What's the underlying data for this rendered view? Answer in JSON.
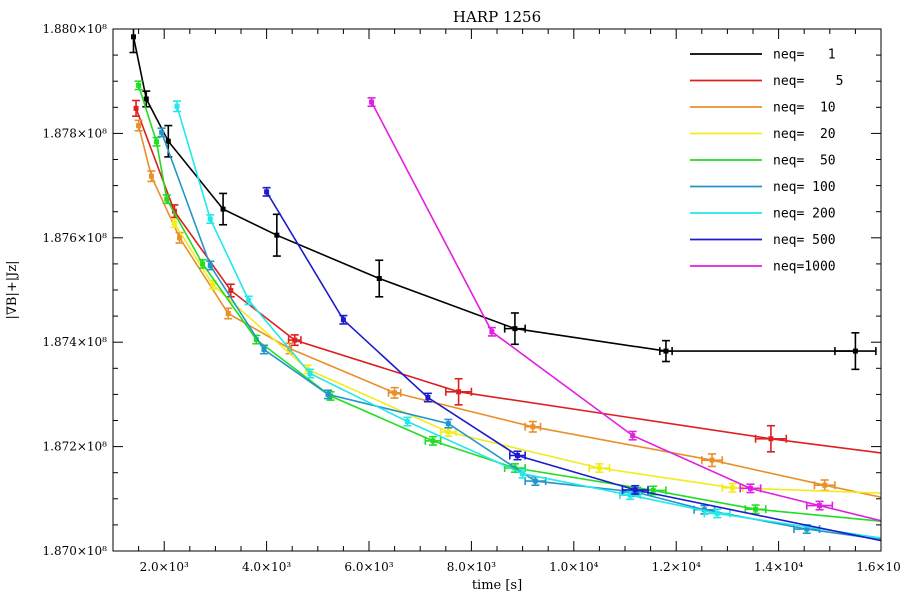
{
  "chart_data": {
    "type": "line",
    "title": "HARP 1256",
    "xlabel": "time [s]",
    "ylabel": "|∇B|+|Jz|",
    "xlim": [
      1000,
      16000
    ],
    "ylim": [
      187000000.0,
      188000000.0
    ],
    "x_ticks": [
      {
        "value": 2000,
        "label": "2.0×10³"
      },
      {
        "value": 4000,
        "label": "4.0×10³"
      },
      {
        "value": 6000,
        "label": "6.0×10³"
      },
      {
        "value": 8000,
        "label": "8.0×10³"
      },
      {
        "value": 10000,
        "label": "1.0×10⁴"
      },
      {
        "value": 12000,
        "label": "1.2×10⁴"
      },
      {
        "value": 14000,
        "label": "1.4×10⁴"
      },
      {
        "value": 16000,
        "label": "1.6×10⁴"
      }
    ],
    "y_ticks": [
      {
        "value": 187000000.0,
        "label": "1.870×10⁸"
      },
      {
        "value": 187200000.0,
        "label": "1.872×10⁸"
      },
      {
        "value": 187400000.0,
        "label": "1.874×10⁸"
      },
      {
        "value": 187600000.0,
        "label": "1.876×10⁸"
      },
      {
        "value": 187800000.0,
        "label": "1.878×10⁸"
      },
      {
        "value": 188000000.0,
        "label": "1.880×10⁸"
      }
    ],
    "legend_position": "top-right",
    "series": [
      {
        "name": "neq=   1",
        "color": "#000000",
        "x": [
          1400,
          1650,
          2080,
          3150,
          4200,
          6200,
          8850,
          11800,
          15500
        ],
        "y": [
          187985000.0,
          187866000.0,
          187785000.0,
          187655000.0,
          187605000.0,
          187522000.0,
          187426000.0,
          187383000.0,
          187383000.0
        ],
        "yerr": [
          30000.0,
          15000.0,
          30000.0,
          30000.0,
          40000.0,
          35000.0,
          30000.0,
          20000.0,
          35000.0
        ],
        "xerr": [
          0,
          0,
          0,
          0,
          0,
          0,
          200,
          120,
          400
        ]
      },
      {
        "name": "neq=    5",
        "color": "#dd2020",
        "x": [
          1450,
          2200,
          3300,
          4550,
          7750,
          13850,
          16000
        ],
        "y": [
          187848000.0,
          187651000.0,
          187499000.0,
          187404000.0,
          187305000.0,
          187215000.0,
          187188000.0
        ],
        "yerr": [
          15000.0,
          12000.0,
          12000.0,
          10000.0,
          25000.0,
          25000.0,
          0
        ],
        "xerr": [
          0,
          0,
          0,
          120,
          250,
          300,
          0
        ]
      },
      {
        "name": "neq=  10",
        "color": "#e8902a",
        "x": [
          1500,
          1750,
          2300,
          3250,
          4450,
          6500,
          9200,
          12700,
          14900,
          16000
        ],
        "y": [
          187815000.0,
          187718000.0,
          187600000.0,
          187455000.0,
          187388000.0,
          187303000.0,
          187238000.0,
          187174000.0,
          187126000.0,
          187103000.0
        ],
        "yerr": [
          10000.0,
          10000.0,
          10000.0,
          10000.0,
          10000.0,
          10000.0,
          10000.0,
          12000.0,
          10000.0,
          0
        ],
        "xerr": [
          0,
          0,
          0,
          0,
          0,
          120,
          150,
          200,
          200,
          0
        ]
      },
      {
        "name": "neq=  20",
        "color": "#f2ec1c",
        "x": [
          2200,
          2950,
          4800,
          7550,
          10500,
          13100,
          16000
        ],
        "y": [
          187628000.0,
          187510000.0,
          187348000.0,
          187228000.0,
          187159000.0,
          187121000.0,
          187111000.0
        ],
        "yerr": [
          8000.0,
          8000.0,
          8000.0,
          8000.0,
          8000.0,
          8000.0,
          0
        ],
        "xerr": [
          0,
          0,
          0,
          150,
          200,
          200,
          0
        ]
      },
      {
        "name": "neq=  50",
        "color": "#22dd22",
        "x": [
          1500,
          1850,
          2050,
          2750,
          3800,
          5250,
          7250,
          8850,
          11550,
          13550,
          16000
        ],
        "y": [
          187892000.0,
          187784000.0,
          187674000.0,
          187550000.0,
          187405000.0,
          187297000.0,
          187211000.0,
          187159000.0,
          187116000.0,
          187080000.0,
          187057000.0
        ],
        "yerr": [
          8000.0,
          8000.0,
          8000.0,
          8000.0,
          8000.0,
          8000.0,
          8000.0,
          8000.0,
          8000.0,
          8000.0,
          0
        ],
        "xerr": [
          0,
          0,
          0,
          0,
          0,
          0,
          150,
          200,
          250,
          200,
          0
        ]
      },
      {
        "name": "neq= 100",
        "color": "#2296c8",
        "x": [
          1950,
          2900,
          3950,
          5200,
          7550,
          9250,
          11200,
          12550,
          14550,
          16000
        ],
        "y": [
          187802000.0,
          187547000.0,
          187386000.0,
          187300000.0,
          187244000.0,
          187134000.0,
          187113000.0,
          187079000.0,
          187042000.0,
          187022000.0
        ],
        "yerr": [
          8000.0,
          8000.0,
          8000.0,
          8000.0,
          8000.0,
          8000.0,
          8000.0,
          8000.0,
          8000.0,
          0
        ],
        "xerr": [
          0,
          0,
          0,
          0,
          0,
          200,
          250,
          200,
          250,
          0
        ]
      },
      {
        "name": "neq= 200",
        "color": "#22e8e8",
        "x": [
          2250,
          2900,
          3650,
          4850,
          6750,
          9000,
          11100,
          12800,
          16000
        ],
        "y": [
          187852000.0,
          187636000.0,
          187480000.0,
          187340000.0,
          187248000.0,
          187148000.0,
          187107000.0,
          187072000.0,
          187025000.0
        ],
        "yerr": [
          10000.0,
          8000.0,
          8000.0,
          8000.0,
          8000.0,
          8000.0,
          8000.0,
          8000.0,
          0
        ],
        "xerr": [
          0,
          0,
          0,
          0,
          0,
          0,
          200,
          250,
          0
        ]
      },
      {
        "name": "neq= 500",
        "color": "#1c1ccc",
        "x": [
          4000,
          5500,
          7150,
          8900,
          11200,
          16000
        ],
        "y": [
          187688000.0,
          187443000.0,
          187294000.0,
          187183000.0,
          187117000.0,
          187020000.0
        ],
        "yerr": [
          8000.0,
          8000.0,
          8000.0,
          8000.0,
          8000.0,
          0
        ],
        "xerr": [
          0,
          0,
          0,
          150,
          250,
          0
        ]
      },
      {
        "name": "neq=1000",
        "color": "#e020e0",
        "x": [
          6050,
          8400,
          11150,
          13450,
          14800,
          16000
        ],
        "y": [
          187860000.0,
          187420000.0,
          187221000.0,
          187120000.0,
          187087000.0,
          187058000.0
        ],
        "yerr": [
          8000.0,
          8000.0,
          8000.0,
          8000.0,
          8000.0,
          0
        ],
        "xerr": [
          0,
          0,
          0,
          200,
          250,
          0
        ]
      }
    ]
  }
}
